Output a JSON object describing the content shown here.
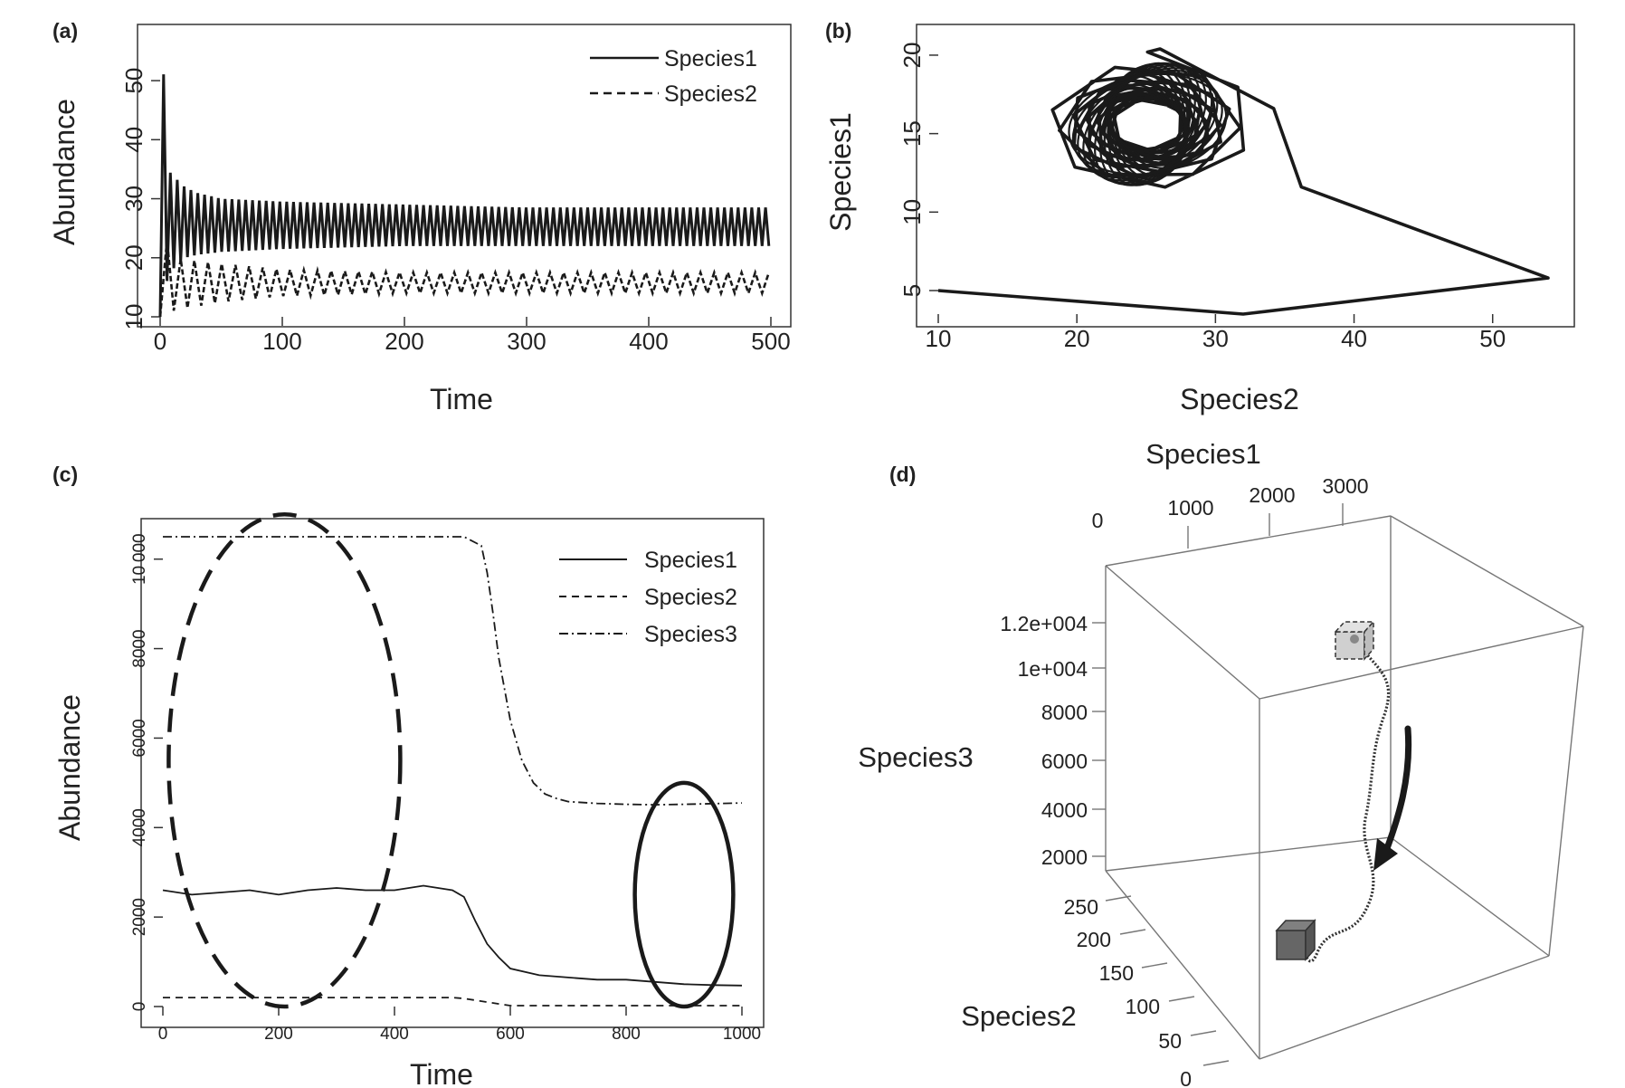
{
  "figure": {
    "panel_labels": [
      "(a)",
      "(b)",
      "(c)",
      "(d)"
    ]
  },
  "chart_data": [
    {
      "panel": "(a)",
      "type": "line",
      "xlabel": "Time",
      "ylabel": "Abundance",
      "xlim": [
        0,
        500
      ],
      "ylim": [
        10,
        54
      ],
      "xticks": [
        0,
        100,
        200,
        300,
        400,
        500
      ],
      "yticks": [
        10,
        20,
        30,
        40,
        50
      ],
      "legend_position": "top-right",
      "series": [
        {
          "name": "Species1",
          "style": "solid",
          "color": "#1a1a1a",
          "x": [
            0,
            3,
            6,
            10,
            15,
            20,
            30,
            50,
            100,
            200,
            300,
            400,
            500
          ],
          "y_high": [
            10,
            54,
            35,
            34,
            33,
            32,
            31,
            30,
            29.5,
            29,
            28.5,
            28.5,
            28.5
          ],
          "y_low": [
            10,
            10,
            17,
            18,
            19,
            20,
            20.5,
            21,
            21.5,
            22,
            22,
            22,
            22
          ],
          "period": 5.6
        },
        {
          "name": "Species2",
          "style": "dashed",
          "color": "#1a1a1a",
          "x": [
            0,
            10,
            50,
            100,
            200,
            300,
            400,
            500
          ],
          "y_high": [
            27,
            20,
            19,
            18,
            17.5,
            17.5,
            17.5,
            17.5
          ],
          "y_low": [
            10,
            11,
            12.5,
            13.5,
            14,
            14,
            14,
            14
          ],
          "period": 11.2
        }
      ]
    },
    {
      "panel": "(b)",
      "type": "line",
      "xlabel": "Species2",
      "ylabel": "Species1",
      "xlim": [
        10,
        54
      ],
      "ylim": [
        3.5,
        20.4
      ],
      "xticks": [
        10,
        20,
        30,
        40,
        50
      ],
      "yticks": [
        5,
        10,
        15,
        20
      ],
      "series": [
        {
          "name": "",
          "style": "solid",
          "color": "#1a1a1a",
          "x": [
            10,
            32,
            54,
            36.2,
            34.2,
            26
          ],
          "y": [
            5,
            3.5,
            5.8,
            11.6,
            16.6,
            20.4
          ]
        }
      ],
      "limit_cycle": {
        "center": [
          25.1,
          15.6
        ],
        "inner_radius": [
          2.5,
          1.6
        ],
        "outer_radius": [
          8.4,
          4.6
        ]
      }
    },
    {
      "panel": "(c)",
      "type": "line",
      "xlabel": "Time",
      "ylabel": "Abundance",
      "xlim": [
        0,
        1000
      ],
      "ylim": [
        0,
        10500
      ],
      "xticks": [
        0,
        200,
        400,
        600,
        800,
        1000
      ],
      "yticks": [
        0,
        2000,
        4000,
        6000,
        8000,
        10000
      ],
      "legend_position": "top-right",
      "series": [
        {
          "name": "Species1",
          "style": "solid",
          "color": "#1a1a1a",
          "x": [
            0,
            50,
            100,
            150,
            200,
            250,
            300,
            350,
            400,
            450,
            500,
            520,
            540,
            560,
            580,
            600,
            650,
            700,
            750,
            800,
            850,
            900,
            950,
            1000
          ],
          "y": [
            2600,
            2500,
            2550,
            2600,
            2500,
            2600,
            2650,
            2600,
            2600,
            2700,
            2600,
            2450,
            1900,
            1400,
            1100,
            850,
            700,
            650,
            600,
            600,
            550,
            500,
            480,
            470
          ]
        },
        {
          "name": "Species2",
          "style": "dashed",
          "color": "#1a1a1a",
          "x": [
            0,
            100,
            200,
            300,
            400,
            500,
            520,
            560,
            600,
            700,
            800,
            900,
            1000
          ],
          "y": [
            200,
            200,
            200,
            200,
            200,
            200,
            180,
            100,
            20,
            20,
            20,
            20,
            20
          ]
        },
        {
          "name": "Species3",
          "style": "dashdot",
          "color": "#1a1a1a",
          "x": [
            0,
            200,
            400,
            520,
            550,
            560,
            570,
            580,
            600,
            620,
            640,
            660,
            680,
            700,
            750,
            800,
            850,
            900,
            1000
          ],
          "y": [
            10500,
            10500,
            10500,
            10500,
            10300,
            9700,
            8800,
            7800,
            6400,
            5500,
            5000,
            4750,
            4650,
            4580,
            4540,
            4520,
            4510,
            4520,
            4550
          ]
        }
      ],
      "annotations": [
        {
          "shape": "ellipse",
          "style": "dashed",
          "center": [
            210,
            5500
          ],
          "half_width": 200,
          "half_height": 5500
        },
        {
          "shape": "ellipse",
          "style": "solid",
          "center": [
            900,
            2500
          ],
          "half_width": 85,
          "half_height": 2500
        }
      ]
    },
    {
      "panel": "(d)",
      "type": "scatter",
      "axis_titles": [
        "Species1",
        "Species3",
        "Species2"
      ],
      "species1_ticks": [
        "0",
        "1000",
        "2000",
        "3000"
      ],
      "species3_ticks": [
        "1.2e+004",
        "1e+004",
        "8000",
        "6000",
        "4000",
        "2000"
      ],
      "species2_ticks": [
        "250",
        "200",
        "150",
        "100",
        "50",
        "0"
      ],
      "trajectory": {
        "start_marker": "light-grey-cube",
        "end_marker": "dark-grey-cube",
        "direction_arrow": "downward"
      }
    }
  ]
}
